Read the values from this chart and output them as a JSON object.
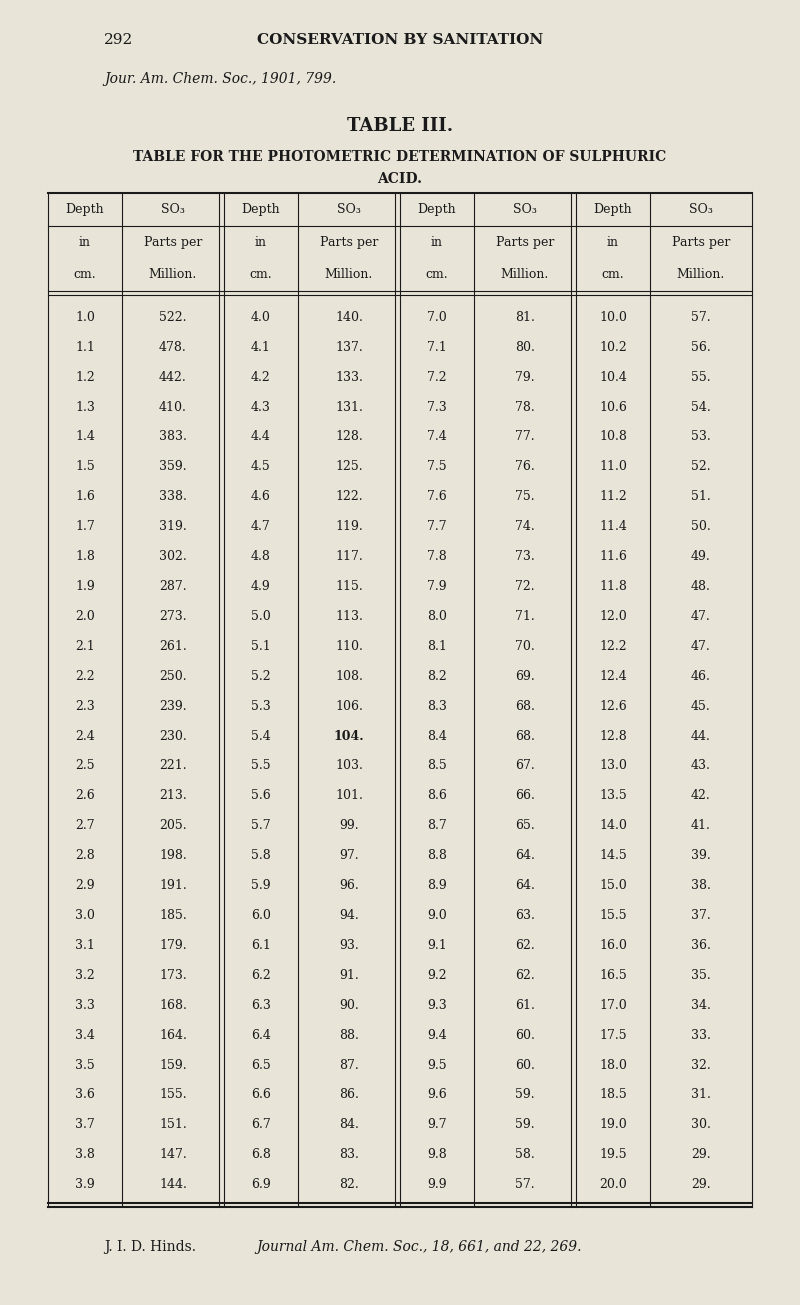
{
  "page_number": "292",
  "page_header": "CONSERVATION BY SANITATION",
  "citation_top": "Jour. Am. Chem. Soc., 1901, 799.",
  "table_title1": "TABLE III.",
  "table_subtitle1": "TABLE FOR THE PHOTOMETRIC DETERMINATION OF SULPHURIC",
  "table_subtitle2": "ACID.",
  "col_headers": [
    [
      "Depth",
      "SO₃",
      "Depth",
      "SO₃",
      "Depth",
      "SO₃",
      "Depth",
      "SO₃"
    ],
    [
      "in",
      "Parts per",
      "in",
      "Parts per",
      "in",
      "Parts per",
      "in",
      "Parts per"
    ],
    [
      "cm.",
      "Million.",
      "cm.",
      "Million.",
      "cm.",
      "Million.",
      "cm.",
      "Million."
    ]
  ],
  "data": [
    [
      "1.0",
      "522.",
      "4.0",
      "140.",
      "7.0",
      "81.",
      "10.0",
      "57."
    ],
    [
      "1.1",
      "478.",
      "4.1",
      "137.",
      "7.1",
      "80.",
      "10.2",
      "56."
    ],
    [
      "1.2",
      "442.",
      "4.2",
      "133.",
      "7.2",
      "79.",
      "10.4",
      "55."
    ],
    [
      "1.3",
      "410.",
      "4.3",
      "131.",
      "7.3",
      "78.",
      "10.6",
      "54."
    ],
    [
      "1.4",
      "383.",
      "4.4",
      "128.",
      "7.4",
      "77.",
      "10.8",
      "53."
    ],
    [
      "1.5",
      "359.",
      "4.5",
      "125.",
      "7.5",
      "76.",
      "11.0",
      "52."
    ],
    [
      "1.6",
      "338.",
      "4.6",
      "122.",
      "7.6",
      "75.",
      "11.2",
      "51."
    ],
    [
      "1.7",
      "319.",
      "4.7",
      "119.",
      "7.7",
      "74.",
      "11.4",
      "50."
    ],
    [
      "1.8",
      "302.",
      "4.8",
      "117.",
      "7.8",
      "73.",
      "11.6",
      "49."
    ],
    [
      "1.9",
      "287.",
      "4.9",
      "115.",
      "7.9",
      "72.",
      "11.8",
      "48."
    ],
    [
      "2.0",
      "273.",
      "5.0",
      "113.",
      "8.0",
      "71.",
      "12.0",
      "47."
    ],
    [
      "2.1",
      "261.",
      "5.1",
      "110.",
      "8.1",
      "70.",
      "12.2",
      "47."
    ],
    [
      "2.2",
      "250.",
      "5.2",
      "108.",
      "8.2",
      "69.",
      "12.4",
      "46."
    ],
    [
      "2.3",
      "239.",
      "5.3",
      "106.",
      "8.3",
      "68.",
      "12.6",
      "45."
    ],
    [
      "2.4",
      "230.",
      "5.4",
      "104.",
      "8.4",
      "68.",
      "12.8",
      "44."
    ],
    [
      "2.5",
      "221.",
      "5.5",
      "103.",
      "8.5",
      "67.",
      "13.0",
      "43."
    ],
    [
      "2.6",
      "213.",
      "5.6",
      "101.",
      "8.6",
      "66.",
      "13.5",
      "42."
    ],
    [
      "2.7",
      "205.",
      "5.7",
      "99.",
      "8.7",
      "65.",
      "14.0",
      "41."
    ],
    [
      "2.8",
      "198.",
      "5.8",
      "97.",
      "8.8",
      "64.",
      "14.5",
      "39."
    ],
    [
      "2.9",
      "191.",
      "5.9",
      "96.",
      "8.9",
      "64.",
      "15.0",
      "38."
    ],
    [
      "3.0",
      "185.",
      "6.0",
      "94.",
      "9.0",
      "63.",
      "15.5",
      "37."
    ],
    [
      "3.1",
      "179.",
      "6.1",
      "93.",
      "9.1",
      "62.",
      "16.0",
      "36."
    ],
    [
      "3.2",
      "173.",
      "6.2",
      "91.",
      "9.2",
      "62.",
      "16.5",
      "35."
    ],
    [
      "3.3",
      "168.",
      "6.3",
      "90.",
      "9.3",
      "61.",
      "17.0",
      "34."
    ],
    [
      "3.4",
      "164.",
      "6.4",
      "88.",
      "9.4",
      "60.",
      "17.5",
      "33."
    ],
    [
      "3.5",
      "159.",
      "6.5",
      "87.",
      "9.5",
      "60.",
      "18.0",
      "32."
    ],
    [
      "3.6",
      "155.",
      "6.6",
      "86.",
      "9.6",
      "59.",
      "18.5",
      "31."
    ],
    [
      "3.7",
      "151.",
      "6.7",
      "84.",
      "9.7",
      "59.",
      "19.0",
      "30."
    ],
    [
      "3.8",
      "147.",
      "6.8",
      "83.",
      "9.8",
      "58.",
      "19.5",
      "29."
    ],
    [
      "3.9",
      "144.",
      "6.9",
      "82.",
      "9.9",
      "57.",
      "20.0",
      "29."
    ]
  ],
  "citation_bottom": "J. I. D. Hinds.   Journal Am. Chem. Soc., 18, 661, and 22, 269.",
  "bg_color": "#e8e4d8",
  "text_color": "#1a1a1a"
}
